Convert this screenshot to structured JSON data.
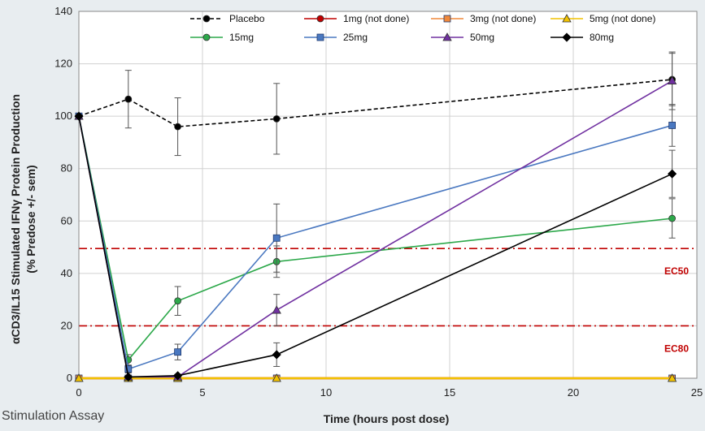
{
  "footer_text": "Stimulation Assay",
  "chart_data": {
    "type": "line",
    "xlabel": "Time (hours post dose)",
    "ylabel_line1": "αCD3/IL15 Stimulated IFNγ Protein Production",
    "ylabel_line2": "(% Predose +/- sem)",
    "xlim": [
      0,
      25
    ],
    "ylim": [
      0,
      140
    ],
    "xticks": [
      0,
      5,
      10,
      15,
      20,
      25
    ],
    "yticks": [
      0,
      20,
      40,
      60,
      80,
      100,
      120,
      140
    ],
    "grid": true,
    "legend_position": "top",
    "reference_lines": [
      {
        "label": "EC50",
        "y": 49.5,
        "color": "#c00000"
      },
      {
        "label": "EC80",
        "y": 20,
        "color": "#c00000"
      }
    ],
    "series": [
      {
        "name": "Placebo",
        "color": "#000000",
        "marker": "circle",
        "dash": "dashed",
        "x": [
          0,
          2,
          4,
          8,
          24
        ],
        "y": [
          100,
          106.5,
          96,
          99,
          114
        ],
        "err": [
          0,
          11,
          11,
          13.5,
          10
        ]
      },
      {
        "name": "1mg (not done)",
        "color": "#c00000",
        "marker": "circle",
        "dash": "solid",
        "x": [
          0,
          2,
          4,
          8,
          24
        ],
        "y": [
          0,
          0,
          0,
          0,
          0
        ],
        "err": [
          0,
          0,
          0,
          0,
          0
        ]
      },
      {
        "name": "3mg (not done)",
        "color": "#f0883a",
        "marker": "square",
        "dash": "solid",
        "x": [
          0,
          2,
          4,
          8,
          24
        ],
        "y": [
          0,
          0,
          0,
          0,
          0
        ],
        "err": [
          0,
          0,
          0,
          0,
          0
        ]
      },
      {
        "name": "5mg (not done)",
        "color": "#f2c200",
        "marker": "triangle",
        "dash": "solid",
        "x": [
          0,
          2,
          4,
          8,
          24
        ],
        "y": [
          0,
          0,
          0,
          0,
          0
        ],
        "err": [
          0,
          0,
          0,
          0,
          0
        ]
      },
      {
        "name": "15mg",
        "color": "#2ca84a",
        "marker": "circle",
        "dash": "solid",
        "x": [
          0,
          2,
          4,
          8,
          24
        ],
        "y": [
          100,
          7,
          29.5,
          44.5,
          61
        ],
        "err": [
          0,
          2,
          5.5,
          6,
          7.5
        ]
      },
      {
        "name": "25mg",
        "color": "#4a78c0",
        "marker": "square",
        "dash": "solid",
        "x": [
          0,
          2,
          4,
          8,
          24
        ],
        "y": [
          100,
          3.5,
          10,
          53.5,
          96.5
        ],
        "err": [
          0,
          1.5,
          3,
          13,
          8
        ]
      },
      {
        "name": "50mg",
        "color": "#7030a0",
        "marker": "triangle",
        "dash": "solid",
        "x": [
          0,
          2,
          4,
          8,
          24
        ],
        "y": [
          100,
          0.5,
          0.5,
          26,
          113.5
        ],
        "err": [
          0,
          0.5,
          0.5,
          6,
          11
        ]
      },
      {
        "name": "80mg",
        "color": "#000000",
        "marker": "diamond",
        "dash": "solid",
        "x": [
          0,
          2,
          4,
          8,
          24
        ],
        "y": [
          100,
          0.5,
          1,
          9,
          78
        ],
        "err": [
          0,
          0.5,
          0.5,
          4.5,
          9
        ]
      }
    ]
  }
}
